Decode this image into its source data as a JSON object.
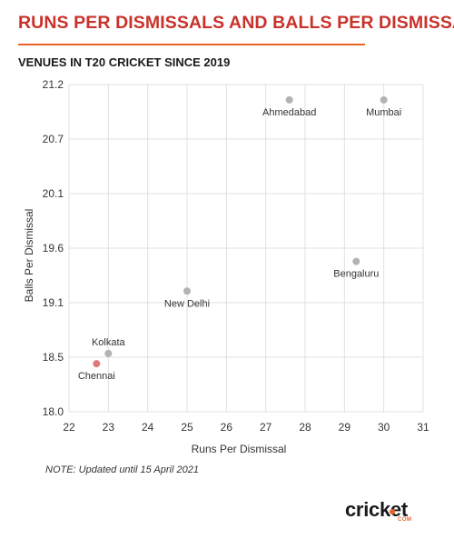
{
  "title": "RUNS PER DISMISSALS AND BALLS PER DISMISSAL",
  "subtitle": "VENUES IN T20 CRICKET SINCE 2019",
  "note": "NOTE: Updated until 15 April 2021",
  "logo": {
    "word": "cricket",
    "suffix": "COM"
  },
  "colors": {
    "title": "#c8322a",
    "accent": "#e8632b",
    "point": "#b3b3b3",
    "highlight": "#e07a7a",
    "grid": "#e0e0e0"
  },
  "chart_data": {
    "type": "scatter",
    "xlabel": "Runs Per Dismissal",
    "ylabel": "Balls Per Dismissal",
    "xlim": [
      22,
      31
    ],
    "ylim": [
      18.0,
      21.2
    ],
    "xticks": [
      "22",
      "23",
      "24",
      "25",
      "26",
      "27",
      "28",
      "29",
      "30",
      "31"
    ],
    "yticks": [
      "18.0",
      "18.5",
      "19.1",
      "19.6",
      "20.1",
      "20.7",
      "21.2"
    ],
    "grid": true,
    "points": [
      {
        "label": "Ahmedabad",
        "x": 27.6,
        "y": 21.05,
        "label_pos": "below",
        "highlight": false
      },
      {
        "label": "Mumbai",
        "x": 30.0,
        "y": 21.05,
        "label_pos": "below",
        "highlight": false
      },
      {
        "label": "Bengaluru",
        "x": 29.3,
        "y": 19.47,
        "label_pos": "below",
        "highlight": false
      },
      {
        "label": "New Delhi",
        "x": 25.0,
        "y": 19.18,
        "label_pos": "below",
        "highlight": false
      },
      {
        "label": "Kolkata",
        "x": 23.0,
        "y": 18.57,
        "label_pos": "above",
        "highlight": false
      },
      {
        "label": "Chennai",
        "x": 22.7,
        "y": 18.47,
        "label_pos": "below",
        "highlight": true
      }
    ]
  }
}
